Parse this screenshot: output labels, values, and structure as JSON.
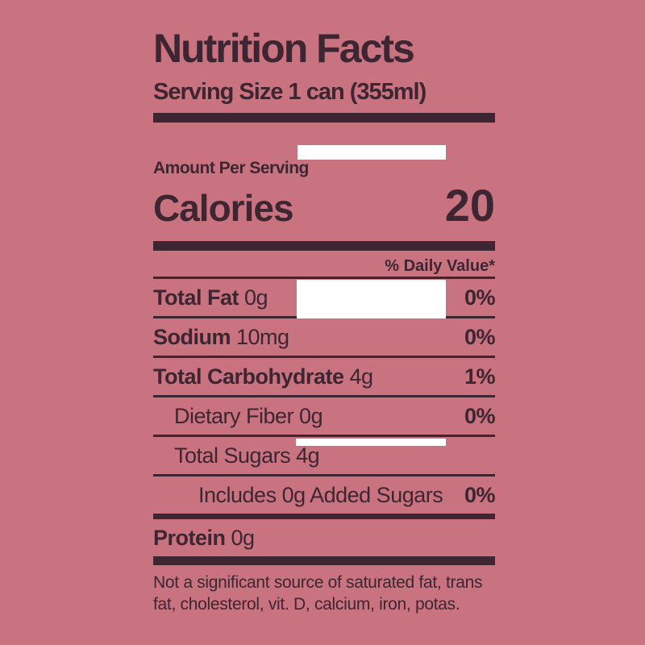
{
  "label": {
    "title": "Nutrition Facts",
    "serving_size": "Serving Size 1 can (355ml)",
    "amount_per_serving": "Amount Per Serving",
    "calories_label": "Calories",
    "calories_value": "20",
    "daily_value_header": "% Daily Value*",
    "rows": [
      {
        "name": "Total Fat",
        "amount": "0g",
        "dv": "0%",
        "indent": 0,
        "bold": true
      },
      {
        "name": "Sodium",
        "amount": "10mg",
        "dv": "0%",
        "indent": 0,
        "bold": true
      },
      {
        "name": "Total Carbohydrate",
        "amount": "4g",
        "dv": "1%",
        "indent": 0,
        "bold": true
      },
      {
        "name": "Dietary Fiber",
        "amount": "0g",
        "dv": "0%",
        "indent": 1,
        "bold": false
      },
      {
        "name": "Total Sugars",
        "amount": "4g",
        "dv": "",
        "indent": 1,
        "bold": false
      },
      {
        "name": "Includes 0g Added Sugars",
        "amount": "",
        "dv": "0%",
        "indent": 2,
        "bold": false
      },
      {
        "name": "Protein",
        "amount": "0g",
        "dv": "",
        "indent": 0,
        "bold": true
      }
    ],
    "footnote": "Not a significant source of saturated fat, trans fat, cholesterol, vit. D, calcium, iron, potas."
  },
  "colors": {
    "background": "#c97380",
    "ink": "#3d2531",
    "redaction": "#ffffff"
  }
}
